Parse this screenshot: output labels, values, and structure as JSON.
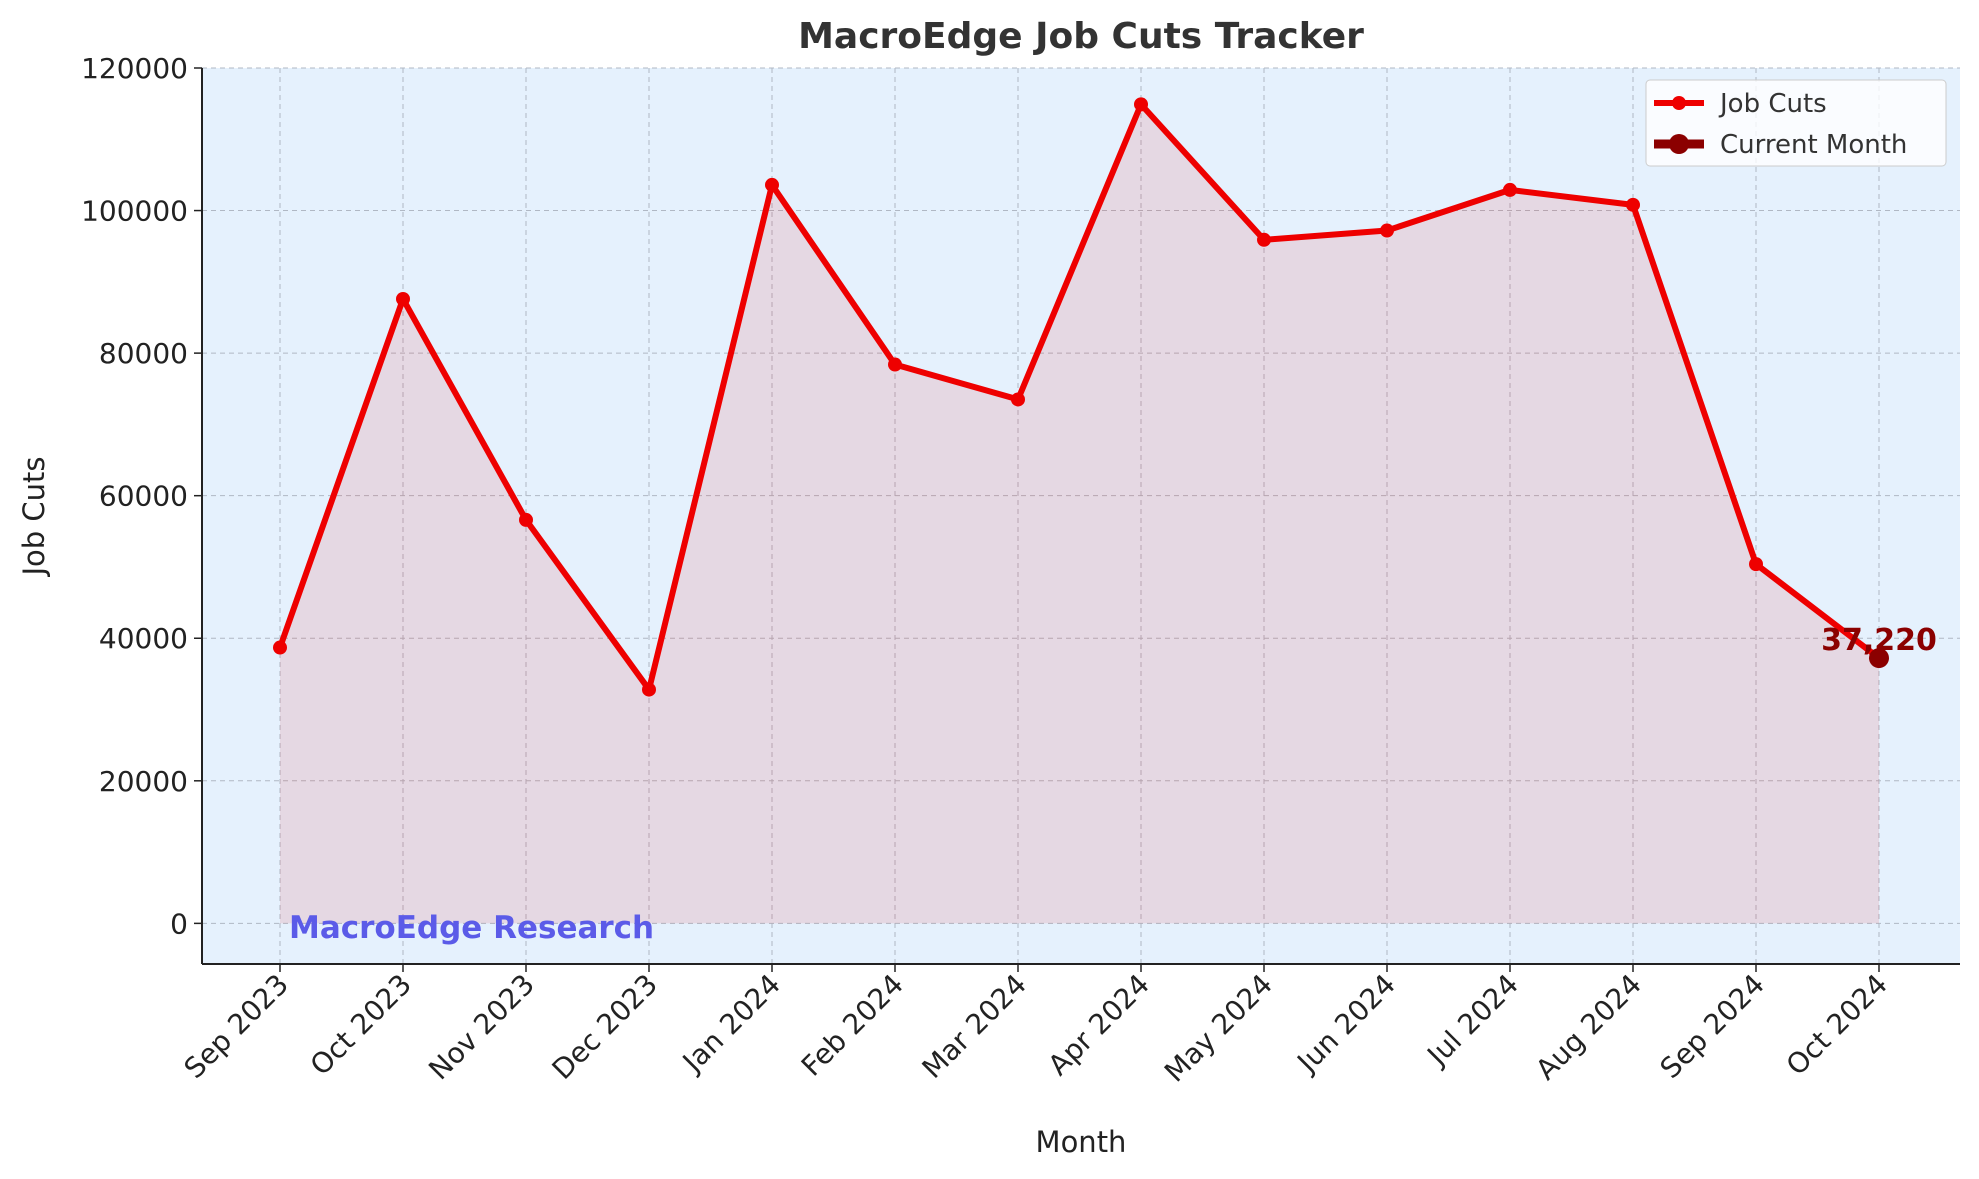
{
  "chart_data": {
    "type": "line",
    "title": "MacroEdge Job Cuts Tracker",
    "x_label": "Month",
    "y_label": "Job Cuts",
    "categories": [
      "Sep 2023",
      "Oct 2023",
      "Nov 2023",
      "Dec 2023",
      "Jan 2024",
      "Feb 2024",
      "Mar 2024",
      "Apr 2024",
      "May 2024",
      "Jun 2024",
      "Jul 2024",
      "Aug 2024",
      "Sep 2024",
      "Oct 2024"
    ],
    "series": [
      {
        "name": "Job Cuts",
        "color": "#ee0000",
        "values": [
          38700,
          87600,
          56600,
          32800,
          103600,
          78400,
          73500,
          114900,
          95900,
          97200,
          102900,
          100800,
          50400,
          37220
        ]
      },
      {
        "name": "Current Month",
        "color": "#8b0000",
        "values": [
          null,
          null,
          null,
          null,
          null,
          null,
          null,
          null,
          null,
          null,
          null,
          null,
          null,
          37220
        ],
        "value_labels": [
          null,
          null,
          null,
          null,
          null,
          null,
          null,
          null,
          null,
          null,
          null,
          null,
          null,
          "37,220"
        ]
      }
    ],
    "ylim": [
      -5700,
      120000
    ],
    "yticks": [
      0,
      20000,
      40000,
      60000,
      80000,
      100000,
      120000
    ],
    "grid": true,
    "fill_area": true,
    "legend": "upper right",
    "annotation": "MacroEdge Research"
  }
}
